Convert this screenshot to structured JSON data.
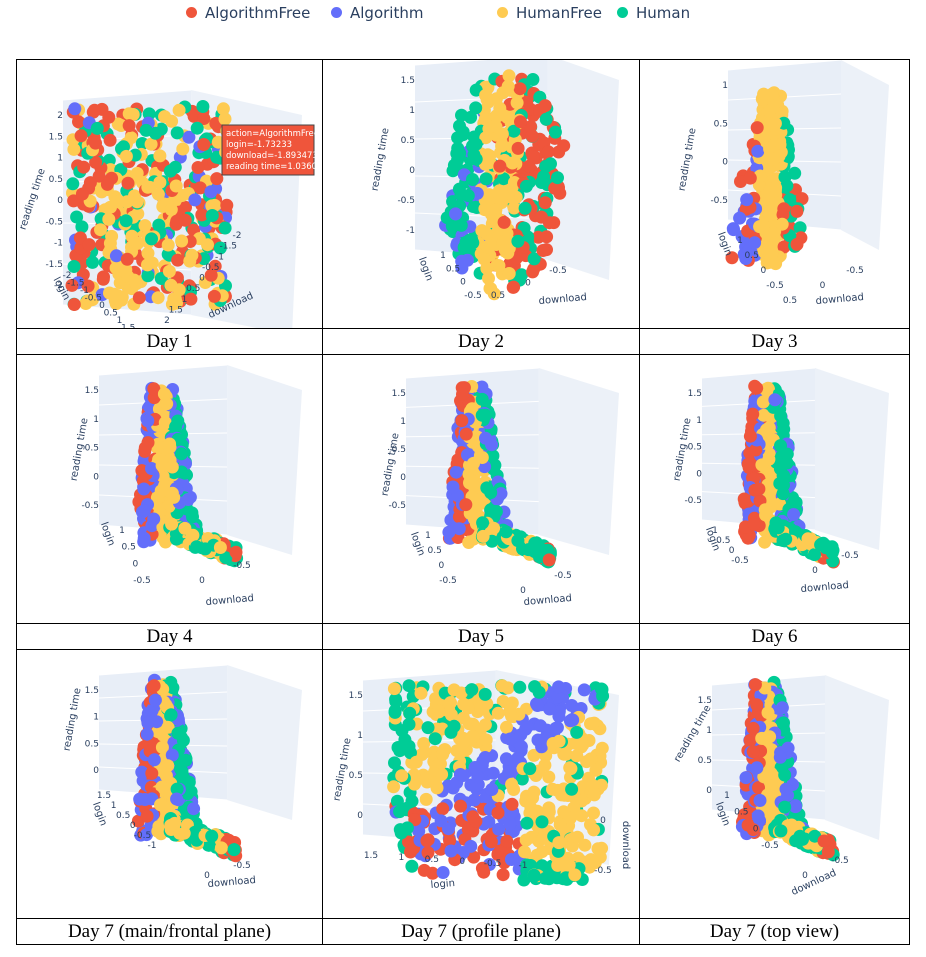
{
  "legend": [
    {
      "name": "AlgorithmFree",
      "color": "#ef553b"
    },
    {
      "name": "Algorithm",
      "color": "#636efa"
    },
    {
      "name": "HumanFree",
      "color": "#fecb52"
    },
    {
      "name": "Human",
      "color": "#00cc96"
    }
  ],
  "chart_data": [
    {
      "type": "scatter",
      "caption": "Day 1",
      "axes": {
        "x": "login",
        "y": "download",
        "z": "reading time"
      },
      "ticks": {
        "z": [
          "2",
          "1.5",
          "1",
          "0.5",
          "0",
          "-0.5",
          "-1",
          "-1.5",
          "-2"
        ],
        "login": [
          "-2",
          "-1.5",
          "-1",
          "-0.5",
          "0",
          "0.5",
          "1",
          "1.5",
          "2"
        ],
        "download": [
          "2",
          "1.5",
          "1",
          "0.5",
          "0",
          "-0.5",
          "-1",
          "-1.5",
          "-2"
        ]
      },
      "hover": [
        "action=AlgorithmFree",
        "login=-1.73233",
        "download=-1.893473",
        "reading time=1.036019"
      ]
    },
    {
      "type": "scatter",
      "caption": "Day 2",
      "axes": {
        "x": "login",
        "y": "download",
        "z": "reading time"
      },
      "ticks": {
        "z": [
          "1.5",
          "1",
          "0.5",
          "0",
          "-0.5",
          "-1"
        ],
        "login": [
          "1",
          "0.5",
          "0",
          "-0.5"
        ],
        "download": [
          "0.5",
          "0",
          "-0.5"
        ]
      }
    },
    {
      "type": "scatter",
      "caption": "Day 3",
      "axes": {
        "x": "login",
        "y": "download",
        "z": "reading time"
      },
      "ticks": {
        "z": [
          "1",
          "0.5",
          "0",
          "-0.5"
        ],
        "login": [
          "1",
          "0.5",
          "0",
          "-0.5"
        ],
        "download": [
          "0.5",
          "0",
          "-0.5"
        ]
      }
    },
    {
      "type": "scatter",
      "caption": "Day 4",
      "axes": {
        "x": "login",
        "y": "download",
        "z": "reading time"
      },
      "ticks": {
        "z": [
          "1.5",
          "1",
          "0.5",
          "0",
          "-0.5"
        ],
        "login": [
          "1",
          "0.5",
          "0",
          "-0.5"
        ],
        "download": [
          "0",
          "-0.5"
        ]
      }
    },
    {
      "type": "scatter",
      "caption": "Day 5",
      "axes": {
        "x": "login",
        "y": "download",
        "z": "reading time"
      },
      "ticks": {
        "z": [
          "1.5",
          "1",
          "0.5",
          "0",
          "-0.5"
        ],
        "login": [
          "1",
          "0.5",
          "0",
          "-0.5"
        ],
        "download": [
          "0",
          "-0.5"
        ]
      }
    },
    {
      "type": "scatter",
      "caption": "Day 6",
      "axes": {
        "x": "login",
        "y": "download",
        "z": "reading time"
      },
      "ticks": {
        "z": [
          "1.5",
          "1",
          "0.5",
          "0",
          "-0.5"
        ],
        "login": [
          "1",
          "0.5",
          "0",
          "-0.5"
        ],
        "download": [
          "0",
          "-0.5"
        ]
      }
    },
    {
      "type": "scatter",
      "caption": "Day 7 (main/frontal plane)",
      "axes": {
        "x": "login",
        "y": "download",
        "z": "reading time"
      },
      "ticks": {
        "z": [
          "1.5",
          "1",
          "0.5",
          "0"
        ],
        "login": [
          "1.5",
          "1",
          "0.5",
          "0",
          "-0.5",
          "-1"
        ],
        "download": [
          "0",
          "-0.5"
        ]
      }
    },
    {
      "type": "scatter",
      "caption": "Day 7 (profile plane)",
      "axes": {
        "x": "login",
        "y": "download",
        "z": "reading time"
      },
      "ticks": {
        "z": [
          "1.5",
          "1",
          "0.5",
          "0"
        ],
        "login": [
          "1.5",
          "1",
          "0.5",
          "0",
          "-0.5",
          "-1"
        ],
        "download": [
          "0",
          "-0.5"
        ]
      }
    },
    {
      "type": "scatter",
      "caption": "Day 7 (top view)",
      "axes": {
        "x": "login",
        "y": "download",
        "z": "reading time"
      },
      "ticks": {
        "z": [
          "1.5",
          "1",
          "0.5",
          "0"
        ],
        "login": [
          "1",
          "0.5",
          "0",
          "-0.5"
        ],
        "download": [
          "0",
          "-0.5"
        ]
      }
    }
  ]
}
